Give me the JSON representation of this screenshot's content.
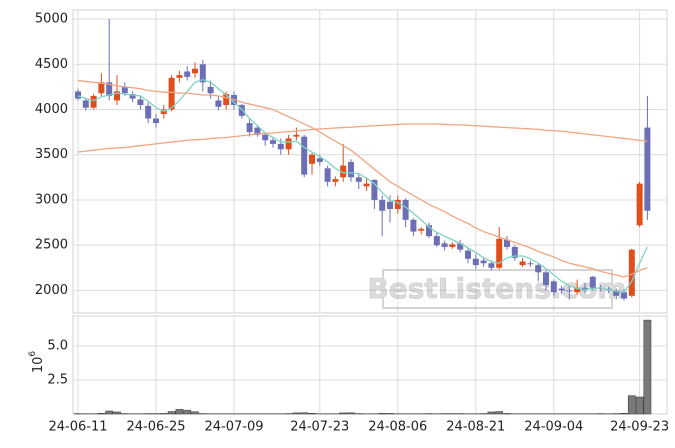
{
  "chart_data": [
    {
      "type": "candlestick",
      "categories": [
        "24-06-11",
        null,
        null,
        null,
        null,
        null,
        null,
        null,
        null,
        null,
        "24-06-25",
        null,
        null,
        null,
        null,
        null,
        null,
        null,
        null,
        null,
        "24-07-09",
        null,
        null,
        null,
        null,
        null,
        null,
        null,
        null,
        null,
        null,
        "24-07-23",
        null,
        null,
        null,
        null,
        null,
        null,
        null,
        null,
        null,
        "24-08-06",
        null,
        null,
        null,
        null,
        null,
        null,
        null,
        null,
        null,
        "24-08-21",
        null,
        null,
        null,
        null,
        null,
        null,
        null,
        null,
        null,
        "24-09-04",
        null,
        null,
        null,
        null,
        null,
        null,
        null,
        null,
        null,
        null,
        "24-09-23",
        null
      ],
      "open": [
        4200,
        4100,
        4020,
        4180,
        4300,
        4100,
        4250,
        4170,
        4110,
        4040,
        3900,
        3950,
        4000,
        4350,
        4420,
        4400,
        4500,
        4250,
        4100,
        4050,
        4160,
        4050,
        3850,
        3800,
        3720,
        3660,
        3620,
        3560,
        3700,
        3700,
        3400,
        3460,
        3350,
        3200,
        3250,
        3420,
        3250,
        3150,
        3220,
        3000,
        2980,
        2900,
        3000,
        2780,
        2660,
        2720,
        2600,
        2520,
        2480,
        2520,
        2440,
        2350,
        2330,
        2300,
        2250,
        2560,
        2480,
        2280,
        2300,
        2280,
        2200,
        2100,
        2020,
        2000,
        1980,
        2030,
        2150,
        2030,
        2020,
        2000,
        1980,
        1940,
        2720,
        3800
      ],
      "high": [
        4230,
        4130,
        4170,
        4400,
        5000,
        4380,
        4300,
        4200,
        4150,
        4080,
        3950,
        4050,
        4380,
        4430,
        4480,
        4520,
        4550,
        4320,
        4150,
        4200,
        4200,
        4060,
        3900,
        3820,
        3750,
        3700,
        3680,
        3720,
        3800,
        3720,
        3520,
        3500,
        3380,
        3260,
        3620,
        3450,
        3300,
        3250,
        3230,
        3050,
        3050,
        3050,
        3020,
        2800,
        2700,
        2750,
        2640,
        2550,
        2530,
        2560,
        2480,
        2400,
        2360,
        2330,
        2700,
        2600,
        2500,
        2360,
        2330,
        2300,
        2220,
        2120,
        2050,
        2050,
        2120,
        2080,
        2160,
        2060,
        2040,
        2020,
        2010,
        2460,
        3200,
        4150
      ],
      "low": [
        4100,
        3990,
        4000,
        4150,
        4100,
        4050,
        4150,
        4080,
        4000,
        3850,
        3800,
        3900,
        3980,
        4300,
        4320,
        4350,
        4200,
        4120,
        3990,
        4000,
        4000,
        3900,
        3700,
        3700,
        3600,
        3580,
        3500,
        3500,
        3660,
        3250,
        3280,
        3380,
        3150,
        3150,
        3200,
        3200,
        3120,
        3100,
        2900,
        2600,
        2750,
        2850,
        2700,
        2600,
        2620,
        2580,
        2480,
        2440,
        2460,
        2420,
        2300,
        2240,
        2260,
        2220,
        2230,
        2450,
        2330,
        2260,
        2260,
        2100,
        2000,
        1940,
        1960,
        1900,
        1950,
        1970,
        2000,
        1990,
        1970,
        1900,
        1890,
        1920,
        2700,
        2780
      ],
      "close": [
        4120,
        4020,
        4150,
        4300,
        4150,
        4200,
        4180,
        4120,
        4050,
        3900,
        3850,
        4000,
        4350,
        4380,
        4360,
        4450,
        4300,
        4180,
        4030,
        4170,
        4050,
        3930,
        3750,
        3720,
        3660,
        3620,
        3560,
        3680,
        3720,
        3280,
        3500,
        3420,
        3200,
        3230,
        3380,
        3250,
        3200,
        3180,
        3000,
        2880,
        2900,
        3000,
        2780,
        2650,
        2680,
        2600,
        2500,
        2480,
        2510,
        2450,
        2350,
        2280,
        2300,
        2250,
        2570,
        2480,
        2360,
        2320,
        2290,
        2200,
        2060,
        1980,
        2000,
        1990,
        2030,
        2000,
        2030,
        2020,
        2000,
        1940,
        1910,
        2450,
        3180,
        2880
      ],
      "up_color": "#e04e1c",
      "down_color": "#6c6fb5",
      "lines": [
        {
          "color": "#7fd3c4",
          "values": [
            4150,
            4120,
            4100,
            4140,
            4160,
            4180,
            4170,
            4160,
            4150,
            4090,
            4020,
            3980,
            4020,
            4100,
            4200,
            4300,
            4330,
            4300,
            4230,
            4160,
            4080,
            4000,
            3900,
            3820,
            3740,
            3690,
            3640,
            3640,
            3650,
            3580,
            3530,
            3480,
            3420,
            3350,
            3300,
            3300,
            3290,
            3240,
            3180,
            3080,
            3000,
            2970,
            2920,
            2850,
            2780,
            2700,
            2640,
            2600,
            2560,
            2520,
            2470,
            2420,
            2360,
            2320,
            2300,
            2360,
            2380,
            2380,
            2350,
            2300,
            2240,
            2170,
            2100,
            2050,
            2020,
            2010,
            2020,
            2030,
            2010,
            1990,
            1980,
            2100,
            2300,
            2480
          ]
        },
        {
          "color": "#f0a683",
          "values": [
            4320,
            4310,
            4300,
            4290,
            4280,
            4260,
            4250,
            4240,
            4230,
            4210,
            4200,
            4190,
            4190,
            4180,
            4180,
            4170,
            4160,
            4160,
            4150,
            4130,
            4110,
            4080,
            4060,
            4040,
            4020,
            4000,
            3960,
            3920,
            3880,
            3840,
            3800,
            3750,
            3700,
            3650,
            3600,
            3550,
            3480,
            3410,
            3340,
            3270,
            3200,
            3150,
            3100,
            3050,
            3000,
            2950,
            2910,
            2870,
            2820,
            2780,
            2740,
            2690,
            2650,
            2620,
            2590,
            2560,
            2530,
            2500,
            2470,
            2430,
            2400,
            2370,
            2330,
            2300,
            2280,
            2260,
            2240,
            2210,
            2190,
            2170,
            2150,
            2180,
            2220,
            2250
          ]
        },
        {
          "color": "#f0a683",
          "values": [
            3530,
            3540,
            3550,
            3560,
            3570,
            3575,
            3580,
            3590,
            3600,
            3610,
            3620,
            3630,
            3640,
            3650,
            3660,
            3665,
            3670,
            3680,
            3685,
            3690,
            3700,
            3710,
            3720,
            3730,
            3735,
            3740,
            3750,
            3755,
            3760,
            3770,
            3780,
            3785,
            3790,
            3795,
            3800,
            3805,
            3810,
            3815,
            3820,
            3825,
            3830,
            3835,
            3840,
            3840,
            3840,
            3840,
            3840,
            3835,
            3830,
            3830,
            3825,
            3820,
            3815,
            3810,
            3805,
            3800,
            3795,
            3790,
            3785,
            3780,
            3770,
            3765,
            3760,
            3750,
            3740,
            3730,
            3720,
            3710,
            3700,
            3690,
            3680,
            3670,
            3660,
            3650
          ]
        }
      ],
      "ylim": [
        1750,
        5100
      ],
      "yticks": [
        2000,
        2500,
        3000,
        3500,
        4000,
        4500,
        5000
      ],
      "grid": true,
      "watermark": "BestListens.com"
    },
    {
      "type": "bar",
      "color": "#7a7a7a",
      "ylabel": "10",
      "ylabel_exponent": "6",
      "values": [
        0.03,
        0.02,
        0.02,
        0.05,
        0.22,
        0.15,
        0.03,
        0.02,
        0.02,
        0.03,
        0.03,
        0.04,
        0.18,
        0.34,
        0.28,
        0.16,
        0.03,
        0.02,
        0.02,
        0.02,
        0.02,
        0.02,
        0.02,
        0.02,
        0.02,
        0.02,
        0.02,
        0.03,
        0.08,
        0.09,
        0.05,
        0.02,
        0.02,
        0.02,
        0.08,
        0.09,
        0.03,
        0.02,
        0.02,
        0.05,
        0.04,
        0.02,
        0.02,
        0.02,
        0.02,
        0.03,
        0.02,
        0.03,
        0.03,
        0.03,
        0.02,
        0.02,
        0.03,
        0.15,
        0.18,
        0.04,
        0.02,
        0.02,
        0.02,
        0.02,
        0.02,
        0.02,
        0.02,
        0.02,
        0.02,
        0.02,
        0.02,
        0.03,
        0.02,
        0.03,
        0.05,
        1.35,
        1.25,
        6.9
      ],
      "ylim": [
        0,
        7.2
      ],
      "yticks": [
        2.5,
        {
          "value": 5,
          "label": "5.0"
        }
      ],
      "grid": true
    }
  ]
}
